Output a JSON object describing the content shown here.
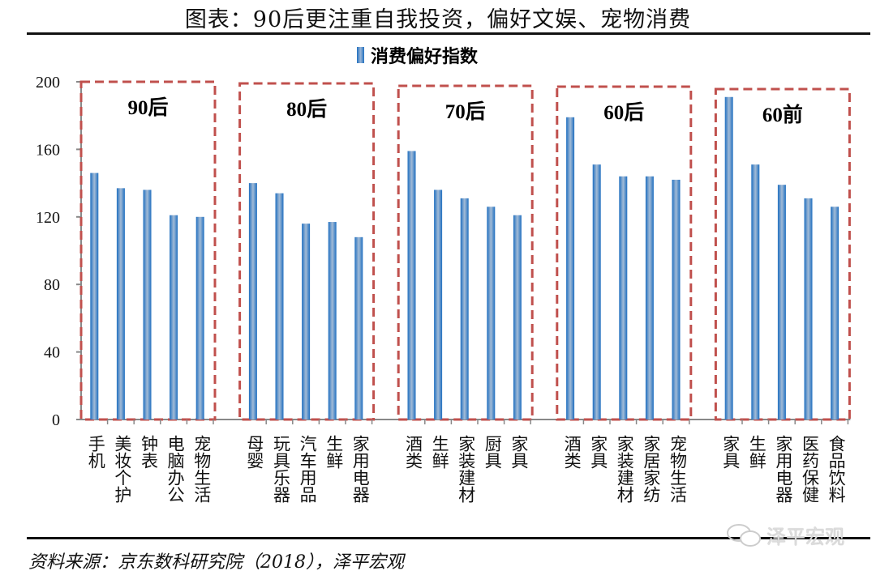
{
  "title": "图表：90后更注重自我投资，偏好文娱、宠物消费",
  "source": "资料来源：京东数科研究院（2018），泽平宏观",
  "watermark": "泽平宏观",
  "chart_data": {
    "type": "bar",
    "title": "",
    "legend": "消费偏好指数",
    "legend_position": "top",
    "ylim": [
      0,
      200
    ],
    "yticks": [
      0,
      40,
      80,
      120,
      160,
      200
    ],
    "grid": false,
    "color": "#2e75b6",
    "box_color": "#c0504d",
    "groups": [
      {
        "label": "90后",
        "categories": [
          "手机",
          "美妆个护",
          "钟表",
          "电脑办公",
          "宠物生活"
        ],
        "values": [
          146,
          137,
          136,
          121,
          120
        ]
      },
      {
        "label": "80后",
        "categories": [
          "母婴",
          "玩具乐器",
          "汽车用品",
          "生鲜",
          "家用电器"
        ],
        "values": [
          140,
          134,
          116,
          117,
          108
        ]
      },
      {
        "label": "70后",
        "categories": [
          "酒类",
          "生鲜",
          "家装建材",
          "厨具",
          "家具"
        ],
        "values": [
          159,
          136,
          131,
          126,
          121
        ]
      },
      {
        "label": "60后",
        "categories": [
          "酒类",
          "家具",
          "家装建材",
          "家居家纺",
          "宠物生活"
        ],
        "values": [
          179,
          151,
          144,
          144,
          142
        ]
      },
      {
        "label": "60前",
        "categories": [
          "家具",
          "生鲜",
          "家用电器",
          "医药保健",
          "食品饮料"
        ],
        "values": [
          191,
          151,
          139,
          131,
          126
        ]
      }
    ]
  }
}
